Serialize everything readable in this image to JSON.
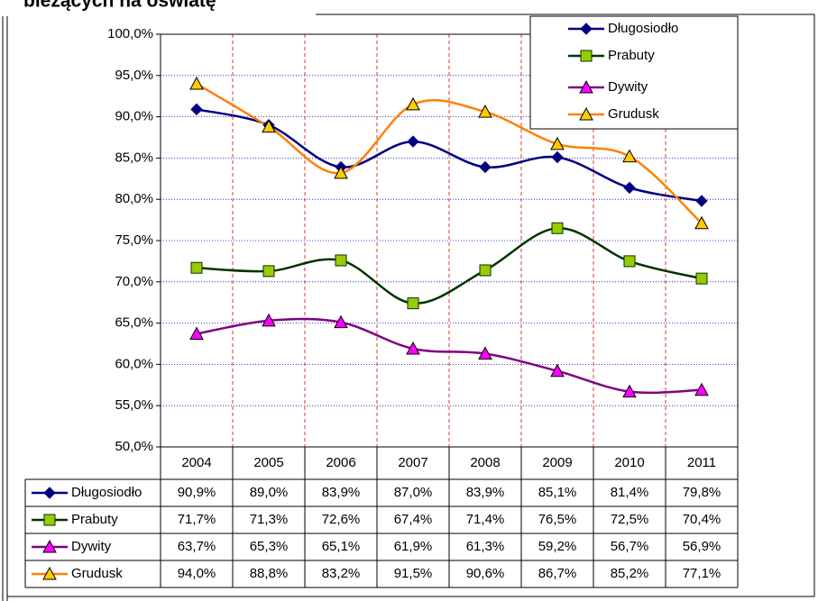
{
  "chart_data": {
    "type": "line",
    "title": "bieżących na oświatę",
    "categories": [
      "2004",
      "2005",
      "2006",
      "2007",
      "2008",
      "2009",
      "2010",
      "2011"
    ],
    "ylim": [
      50,
      100
    ],
    "yticks": [
      {
        "value": 50,
        "label": "50,0%"
      },
      {
        "value": 55,
        "label": "55,0%"
      },
      {
        "value": 60,
        "label": "60,0%"
      },
      {
        "value": 65,
        "label": "65,0%"
      },
      {
        "value": 70,
        "label": "70,0%"
      },
      {
        "value": 75,
        "label": "75,0%"
      },
      {
        "value": 80,
        "label": "80,0%"
      },
      {
        "value": 85,
        "label": "85,0%"
      },
      {
        "value": 90,
        "label": "90,0%"
      },
      {
        "value": 95,
        "label": "95,0%"
      },
      {
        "value": 100,
        "label": "100,0%"
      }
    ],
    "grid": true,
    "legend": "top-right",
    "series": [
      {
        "name": "Długosiodło",
        "color": "#000080",
        "marker": "diamond",
        "marker_color": "#000080",
        "values": [
          90.9,
          89.0,
          83.9,
          87.0,
          83.9,
          85.1,
          81.4,
          79.8
        ],
        "value_labels": [
          "90,9%",
          "89,0%",
          "83,9%",
          "87,0%",
          "83,9%",
          "85,1%",
          "81,4%",
          "79,8%"
        ]
      },
      {
        "name": "Prabuty",
        "color": "#003300",
        "marker": "square",
        "marker_color": "#99cc00",
        "values": [
          71.7,
          71.3,
          72.6,
          67.4,
          71.4,
          76.5,
          72.5,
          70.4
        ],
        "value_labels": [
          "71,7%",
          "71,3%",
          "72,6%",
          "67,4%",
          "71,4%",
          "76,5%",
          "72,5%",
          "70,4%"
        ]
      },
      {
        "name": "Dywity",
        "color": "#800080",
        "marker": "triangle",
        "marker_color": "#ff00ff",
        "values": [
          63.7,
          65.3,
          65.1,
          61.9,
          61.3,
          59.2,
          56.7,
          56.9
        ],
        "value_labels": [
          "63,7%",
          "65,3%",
          "65,1%",
          "61,9%",
          "61,3%",
          "59,2%",
          "56,7%",
          "56,9%"
        ]
      },
      {
        "name": "Grudusk",
        "color": "#ff8000",
        "marker": "triangle",
        "marker_color": "#ffcc00",
        "values": [
          94.0,
          88.8,
          83.2,
          91.5,
          90.6,
          86.7,
          85.2,
          77.1
        ],
        "value_labels": [
          "94,0%",
          "88,8%",
          "83,2%",
          "91,5%",
          "90,6%",
          "86,7%",
          "85,2%",
          "77,1%"
        ]
      }
    ]
  }
}
